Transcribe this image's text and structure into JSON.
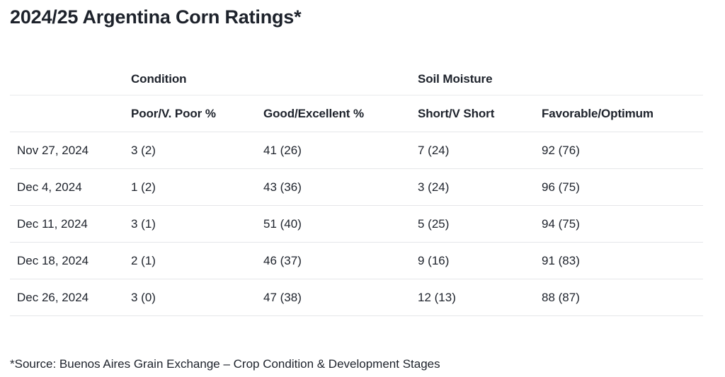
{
  "page": {
    "title": "2024/25 Argentina Corn Ratings*",
    "footnote": "*Source: Buenos Aires Grain Exchange – Crop Condition & Development Stages"
  },
  "chart_data": {
    "type": "table",
    "title": "2024/25 Argentina Corn Ratings*",
    "column_groups": [
      {
        "label": "Condition",
        "columns": [
          "Poor/V. Poor %",
          "Good/Excellent %"
        ]
      },
      {
        "label": "Soil Moisture",
        "columns": [
          "Short/V Short",
          "Favorable/Optimum"
        ]
      }
    ],
    "columns": [
      "",
      "Poor/V. Poor %",
      "Good/Excellent %",
      "Short/V Short",
      "Favorable/Optimum"
    ],
    "rows": [
      [
        "Nov 27, 2024",
        "3 (2)",
        "41 (26)",
        "7 (24)",
        "92 (76)"
      ],
      [
        "Dec 4, 2024",
        "1 (2)",
        "43 (36)",
        "3 (24)",
        "96 (75)"
      ],
      [
        "Dec 11, 2024",
        "3 (1)",
        "51 (40)",
        "5 (25)",
        "94 (75)"
      ],
      [
        "Dec 18, 2024",
        "2 (1)",
        "46 (37)",
        "9 (16)",
        "91 (83)"
      ],
      [
        "Dec 26, 2024",
        "3 (0)",
        "47 (38)",
        "12 (13)",
        "88 (87)"
      ]
    ],
    "footnote": "*Source: Buenos Aires Grain Exchange – Crop Condition & Development Stages",
    "layout_hints": {
      "grid": "horizontal-dividers-only",
      "header_style": "two-level grouped"
    }
  },
  "colors": {
    "text": "#1d222b",
    "divider": "#e5e6e9",
    "background": "#ffffff"
  }
}
